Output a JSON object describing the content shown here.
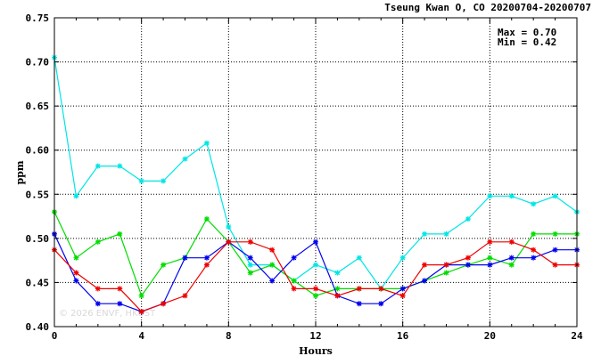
{
  "chart_data": {
    "type": "line",
    "title": "Tseung Kwan O, CO 20200704-20200707",
    "xlabel": "Hours",
    "ylabel": "ppm",
    "xlim": [
      0,
      24
    ],
    "ylim": [
      0.4,
      0.75
    ],
    "x_ticks": [
      "0",
      "4",
      "8",
      "12",
      "16",
      "20",
      "24"
    ],
    "y_ticks": [
      "0.40",
      "0.45",
      "0.50",
      "0.55",
      "0.60",
      "0.65",
      "0.70",
      "0.75"
    ],
    "grid": true,
    "stats": {
      "max_label": "Max = 0.70",
      "min_label": "Min = 0.42"
    },
    "watermark": "© 2026 ENVF, HKUST",
    "x": [
      0,
      1,
      2,
      3,
      4,
      5,
      6,
      7,
      8,
      9,
      10,
      11,
      12,
      13,
      14,
      15,
      16,
      17,
      18,
      19,
      20,
      21,
      22,
      23,
      24
    ],
    "series": [
      {
        "color": "#00e5e5",
        "values": [
          0.705,
          0.548,
          0.582,
          0.582,
          0.565,
          0.565,
          0.59,
          0.608,
          0.513,
          0.47,
          0.47,
          0.452,
          0.47,
          0.461,
          0.478,
          0.443,
          0.478,
          0.505,
          0.505,
          0.522,
          0.548,
          0.548,
          0.539,
          0.548,
          0.53
        ]
      },
      {
        "color": "#00dd00",
        "values": [
          0.53,
          0.478,
          0.496,
          0.505,
          0.435,
          0.47,
          0.478,
          0.522,
          0.496,
          0.461,
          0.47,
          0.452,
          0.435,
          0.443,
          0.443,
          0.443,
          0.443,
          0.452,
          0.461,
          0.47,
          0.478,
          0.47,
          0.505,
          0.505,
          0.505
        ]
      },
      {
        "color": "#0000ee",
        "values": [
          0.505,
          0.452,
          0.426,
          0.426,
          0.417,
          0.426,
          0.478,
          0.478,
          0.496,
          0.478,
          0.452,
          0.478,
          0.496,
          0.435,
          0.426,
          0.426,
          0.443,
          0.452,
          0.47,
          0.47,
          0.47,
          0.478,
          0.478,
          0.487,
          0.487
        ]
      },
      {
        "color": "#ee0000",
        "values": [
          0.487,
          0.461,
          0.443,
          0.443,
          0.417,
          0.426,
          0.435,
          0.47,
          0.496,
          0.496,
          0.487,
          0.443,
          0.443,
          0.435,
          0.443,
          0.443,
          0.435,
          0.47,
          0.47,
          0.478,
          0.496,
          0.496,
          0.487,
          0.47,
          0.47
        ]
      }
    ]
  }
}
